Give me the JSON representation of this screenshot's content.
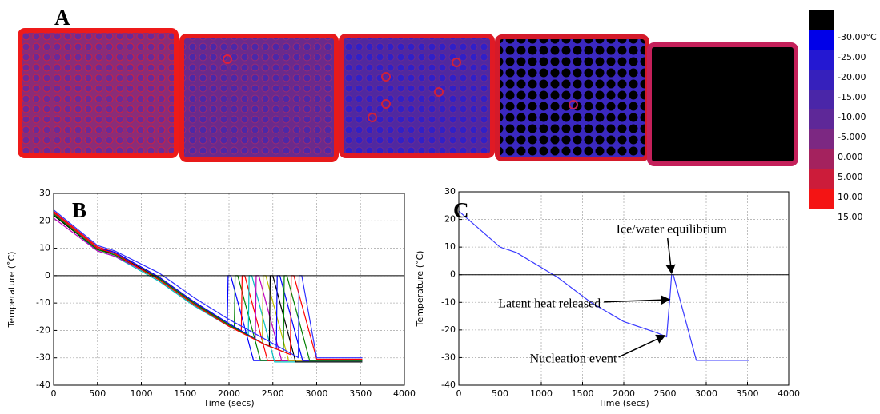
{
  "panel_label": "A",
  "colorbar": {
    "labels": [
      "-30.00°C",
      "-25.00",
      "-20.00",
      "-15.00",
      "-10.00",
      "-5.000",
      "0.000",
      "5.000",
      "10.00",
      "15.00"
    ],
    "colors": [
      "#000000",
      "#0000e8",
      "#2418d2",
      "#3620bc",
      "#4a26a8",
      "#5e2898",
      "#7c2882",
      "#a4225e",
      "#cc1c3a",
      "#f41414"
    ]
  },
  "chart_data": [
    {
      "type": "line",
      "label": "B",
      "xlabel": "Time (secs)",
      "ylabel": "Temperature (˚C)",
      "xlim": [
        0,
        4000
      ],
      "ylim": [
        -40,
        30
      ],
      "xticks": [
        0,
        500,
        1000,
        1500,
        2000,
        2500,
        3000,
        3500,
        4000
      ],
      "yticks": [
        -40,
        -30,
        -20,
        -10,
        0,
        10,
        20,
        30
      ],
      "grid": true,
      "axhline": 0,
      "series": [
        {
          "color": "#0000ff",
          "x": [
            0,
            500,
            700,
            1200,
            1600,
            1980,
            1990,
            2020,
            2280,
            3520
          ],
          "values": [
            23,
            10,
            8,
            -1,
            -10,
            -17.6,
            0,
            0,
            -31,
            -31
          ]
        },
        {
          "color": "#008000",
          "x": [
            0,
            500,
            700,
            1200,
            1600,
            2000,
            2060,
            2070,
            2100,
            2360,
            3520
          ],
          "values": [
            22,
            9.5,
            7.5,
            -1.5,
            -10.5,
            -18,
            -19.1,
            0,
            0,
            -31,
            -31
          ]
        },
        {
          "color": "#ff0000",
          "x": [
            0,
            500,
            700,
            1200,
            1600,
            2000,
            2140,
            2150,
            2180,
            2440,
            3520
          ],
          "values": [
            23.5,
            10.5,
            8.5,
            -0.5,
            -9.5,
            -18,
            -20.5,
            0,
            0,
            -31,
            -31
          ]
        },
        {
          "color": "#00bfbf",
          "x": [
            0,
            500,
            700,
            1200,
            1600,
            2000,
            2220,
            2230,
            2260,
            2520,
            3520
          ],
          "values": [
            22.5,
            9,
            7,
            -2,
            -11,
            -18.5,
            -21.9,
            0,
            0,
            -31.5,
            -31.5
          ]
        },
        {
          "color": "#bf00bf",
          "x": [
            0,
            500,
            700,
            1200,
            1600,
            2000,
            2300,
            2310,
            2340,
            2600,
            3520
          ],
          "values": [
            21,
            9,
            7,
            -1,
            -10,
            -18,
            -23.3,
            0,
            0,
            -31,
            -31
          ]
        },
        {
          "color": "#bfbf00",
          "x": [
            0,
            500,
            700,
            1200,
            1600,
            2000,
            2380,
            2390,
            2420,
            2680,
            3520
          ],
          "values": [
            23,
            10,
            8,
            -1,
            -10,
            -18,
            -24.7,
            0,
            0,
            -31,
            -31
          ]
        },
        {
          "color": "#000000",
          "x": [
            0,
            500,
            700,
            1200,
            1600,
            2000,
            2400,
            2460,
            2470,
            2500,
            2760,
            3520
          ],
          "values": [
            22,
            9.5,
            8,
            -1,
            -10,
            -18,
            -25,
            -25.8,
            0,
            0,
            -31.5,
            -31.5
          ]
        },
        {
          "color": "#0000ff",
          "x": [
            0,
            500,
            700,
            1200,
            1600,
            2000,
            2400,
            2540,
            2550,
            2580,
            2840,
            3520
          ],
          "values": [
            23,
            10,
            8.5,
            -0.5,
            -9.5,
            -17.5,
            -25,
            -26.8,
            0,
            0,
            -31,
            -31
          ]
        },
        {
          "color": "#008000",
          "x": [
            0,
            500,
            700,
            1200,
            1600,
            2000,
            2400,
            2620,
            2630,
            2660,
            2920,
            3520
          ],
          "values": [
            22.5,
            9.5,
            7.5,
            -1,
            -10,
            -18,
            -25,
            -27.8,
            0,
            0,
            -31,
            -31
          ]
        },
        {
          "color": "#ff0000",
          "x": [
            0,
            500,
            700,
            1200,
            1600,
            2000,
            2400,
            2700,
            2710,
            2740,
            3000,
            3520
          ],
          "values": [
            23,
            10,
            8,
            -1.5,
            -10.5,
            -18.5,
            -25,
            -28.8,
            0,
            0,
            -30.5,
            -30.5
          ]
        },
        {
          "color": "#3030ff",
          "x": [
            0,
            500,
            700,
            1200,
            1600,
            2000,
            2400,
            2790,
            2800,
            2830,
            3000,
            3520
          ],
          "values": [
            24,
            11,
            9,
            1,
            -8,
            -16,
            -23,
            -29.9,
            0,
            0,
            -30,
            -30
          ]
        }
      ]
    },
    {
      "type": "line",
      "label": "C",
      "xlabel": "Time (secs)",
      "ylabel": "Temperature (˚C)",
      "xlim": [
        0,
        4000
      ],
      "ylim": [
        -40,
        30
      ],
      "xticks": [
        0,
        500,
        1000,
        1500,
        2000,
        2500,
        3000,
        3500,
        4000
      ],
      "yticks": [
        -40,
        -30,
        -20,
        -10,
        0,
        10,
        20,
        30
      ],
      "grid": true,
      "axhline": 0,
      "series": [
        {
          "color": "#3a3aff",
          "x": [
            0,
            500,
            700,
            1200,
            1600,
            2000,
            2400,
            2520,
            2560,
            2580,
            2600,
            2880,
            3520
          ],
          "values": [
            23,
            10,
            8,
            -1,
            -10,
            -17,
            -21,
            -22.5,
            -8,
            0,
            0,
            -31,
            -31
          ]
        }
      ],
      "annotations": [
        {
          "text": "Ice/water equilibrium",
          "xy": [
            2580,
            0.5
          ]
        },
        {
          "text": "Latent heat released",
          "xy": [
            2555,
            -9
          ]
        },
        {
          "text": "Nucleation event",
          "xy": [
            2500,
            -22
          ]
        }
      ]
    }
  ]
}
